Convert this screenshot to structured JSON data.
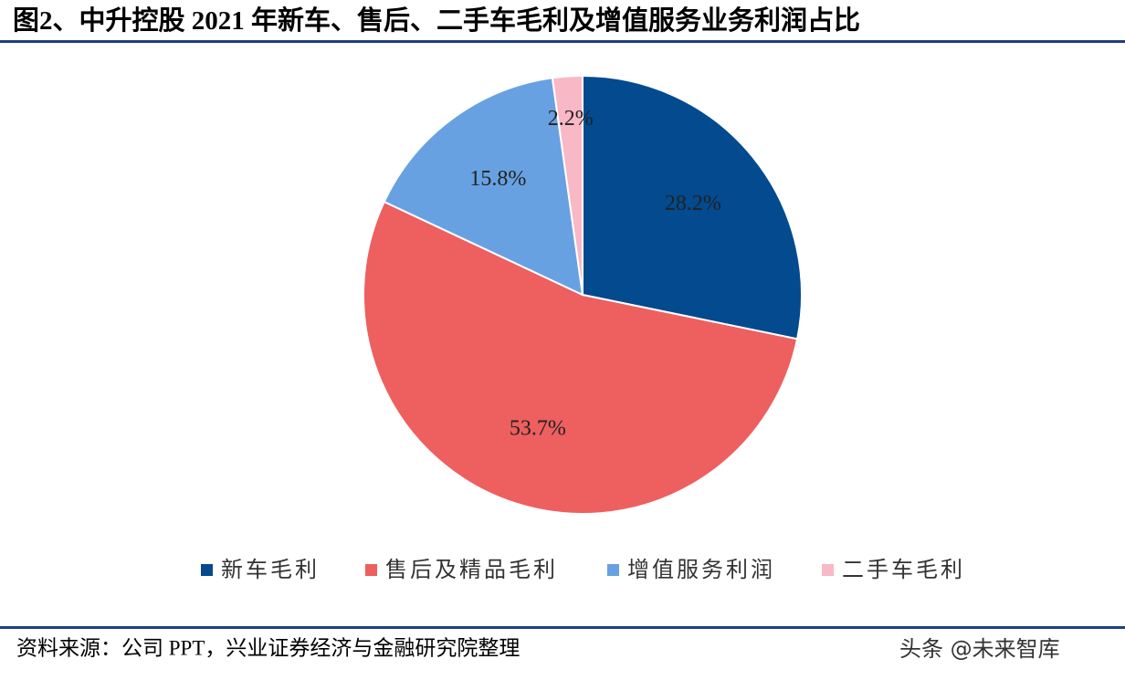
{
  "chart_data": {
    "type": "pie",
    "title": "图2、中升控股 2021 年新车、售后、二手车毛利及增值服务业务利润占比",
    "categories": [
      "新车毛利",
      "售后及精品毛利",
      "增值服务利润",
      "二手车毛利"
    ],
    "values": [
      28.2,
      53.7,
      15.8,
      2.2
    ],
    "value_labels": [
      "28.2%",
      "53.7%",
      "15.8%",
      "2.2%"
    ],
    "colors": [
      "#034a8f",
      "#ee5f5f",
      "#68a1e2",
      "#f9b8c5"
    ],
    "legend": "bottom"
  },
  "source": "资料来源：公司 PPT，兴业证券经济与金融研究院整理",
  "watermark": "头条 @未来智库"
}
